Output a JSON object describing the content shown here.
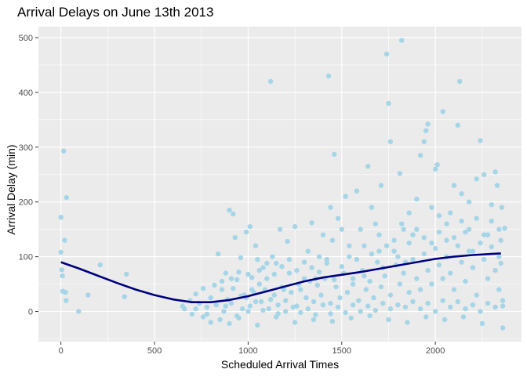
{
  "chart_data": {
    "type": "scatter",
    "title": "Arrival Delays on June 13th 2013",
    "xlabel": "Scheduled Arrival Times",
    "ylabel": "Arrival Delay (min)",
    "xlim": [
      -120,
      2460
    ],
    "ylim": [
      -55,
      520
    ],
    "xticks": [
      0,
      500,
      1000,
      1500,
      2000
    ],
    "yticks": [
      0,
      100,
      200,
      300,
      400,
      500
    ],
    "grid": true,
    "legend": "none",
    "colors": {
      "panel": "#ebebeb",
      "gridline": "#ffffff",
      "point": "#a6d5e8",
      "smooth": "#00007f",
      "text": "#000000",
      "tick_text": "#4d4d4d"
    },
    "series": [
      {
        "points": [
          [
            0,
            172
          ],
          [
            0,
            108
          ],
          [
            5,
            76
          ],
          [
            8,
            65
          ],
          [
            10,
            37
          ],
          [
            15,
            293
          ],
          [
            20,
            130
          ],
          [
            25,
            35
          ],
          [
            28,
            20
          ],
          [
            30,
            208
          ],
          [
            95,
            0
          ],
          [
            145,
            30
          ],
          [
            210,
            85
          ],
          [
            340,
            27
          ],
          [
            350,
            68
          ],
          [
            650,
            10
          ],
          [
            660,
            5
          ],
          [
            690,
            20
          ],
          [
            700,
            -5
          ],
          [
            720,
            32
          ],
          [
            740,
            15
          ],
          [
            760,
            42
          ],
          [
            780,
            8
          ],
          [
            800,
            25
          ],
          [
            820,
            48
          ],
          [
            840,
            105
          ],
          [
            860,
            40
          ],
          [
            880,
            10
          ],
          [
            900,
            185
          ],
          [
            910,
            60
          ],
          [
            920,
            178
          ],
          [
            930,
            135
          ],
          [
            950,
            72
          ],
          [
            960,
            98
          ],
          [
            980,
            30
          ],
          [
            990,
            145
          ],
          [
            1000,
            68
          ],
          [
            1010,
            155
          ],
          [
            1020,
            40
          ],
          [
            1040,
            120
          ],
          [
            1050,
            95
          ],
          [
            1060,
            50
          ],
          [
            1080,
            80
          ],
          [
            1100,
            60
          ],
          [
            1120,
            420
          ],
          [
            1130,
            100
          ],
          [
            1150,
            88
          ],
          [
            1170,
            150
          ],
          [
            1190,
            40
          ],
          [
            1210,
            128
          ],
          [
            1220,
            70
          ],
          [
            1250,
            155
          ],
          [
            1270,
            50
          ],
          [
            1300,
            90
          ],
          [
            1320,
            110
          ],
          [
            1340,
            162
          ],
          [
            1360,
            60
          ],
          [
            1380,
            100
          ],
          [
            1400,
            140
          ],
          [
            1420,
            88
          ],
          [
            1430,
            430
          ],
          [
            1440,
            190
          ],
          [
            1450,
            130
          ],
          [
            1460,
            287
          ],
          [
            1480,
            170
          ],
          [
            1500,
            150
          ],
          [
            1520,
            210
          ],
          [
            1540,
            100
          ],
          [
            1560,
            60
          ],
          [
            1580,
            220
          ],
          [
            1600,
            150
          ],
          [
            1620,
            120
          ],
          [
            1640,
            265
          ],
          [
            1660,
            190
          ],
          [
            1680,
            160
          ],
          [
            1700,
            110
          ],
          [
            1710,
            230
          ],
          [
            1720,
            80
          ],
          [
            1740,
            470
          ],
          [
            1750,
            380
          ],
          [
            1760,
            310
          ],
          [
            1780,
            130
          ],
          [
            1800,
            100
          ],
          [
            1810,
            252
          ],
          [
            1820,
            495
          ],
          [
            1830,
            150
          ],
          [
            1840,
            90
          ],
          [
            1860,
            180
          ],
          [
            1880,
            140
          ],
          [
            1900,
            205
          ],
          [
            1920,
            285
          ],
          [
            1940,
            310
          ],
          [
            1950,
            330
          ],
          [
            1960,
            342
          ],
          [
            1980,
            190
          ],
          [
            2000,
            260
          ],
          [
            2010,
            268
          ],
          [
            2020,
            175
          ],
          [
            2040,
            365
          ],
          [
            2060,
            130
          ],
          [
            2080,
            180
          ],
          [
            2100,
            230
          ],
          [
            2120,
            340
          ],
          [
            2130,
            420
          ],
          [
            2140,
            215
          ],
          [
            2160,
            145
          ],
          [
            2180,
            200
          ],
          [
            2200,
            110
          ],
          [
            2220,
            242
          ],
          [
            2240,
            312
          ],
          [
            2260,
            250
          ],
          [
            2280,
            140
          ],
          [
            2300,
            195
          ],
          [
            2320,
            255
          ],
          [
            2330,
            230
          ],
          [
            2340,
            100
          ],
          [
            2350,
            130
          ],
          [
            2355,
            190
          ],
          [
            2360,
            -30
          ],
          [
            2370,
            152
          ],
          [
            760,
            -10
          ],
          [
            800,
            -20
          ],
          [
            850,
            -15
          ],
          [
            900,
            -22
          ],
          [
            950,
            -12
          ],
          [
            1050,
            -25
          ],
          [
            1150,
            -10
          ],
          [
            1250,
            -20
          ],
          [
            1350,
            -15
          ],
          [
            1450,
            -18
          ],
          [
            1550,
            -12
          ],
          [
            1650,
            -8
          ],
          [
            1750,
            -15
          ],
          [
            1850,
            -20
          ],
          [
            1950,
            -10
          ],
          [
            2050,
            -15
          ],
          [
            2150,
            -10
          ],
          [
            2250,
            -22
          ],
          [
            720,
            5
          ],
          [
            780,
            -5
          ],
          [
            830,
            12
          ],
          [
            870,
            0
          ],
          [
            890,
            22
          ],
          [
            910,
            15
          ],
          [
            940,
            -8
          ],
          [
            970,
            5
          ],
          [
            990,
            25
          ],
          [
            1010,
            10
          ],
          [
            1030,
            35
          ],
          [
            1070,
            18
          ],
          [
            1090,
            40
          ],
          [
            1110,
            5
          ],
          [
            1140,
            30
          ],
          [
            1160,
            12
          ],
          [
            1180,
            45
          ],
          [
            1200,
            20
          ],
          [
            1230,
            35
          ],
          [
            1260,
            10
          ],
          [
            1280,
            40
          ],
          [
            1310,
            25
          ],
          [
            1330,
            55
          ],
          [
            1350,
            18
          ],
          [
            1370,
            48
          ],
          [
            1390,
            30
          ],
          [
            1410,
            60
          ],
          [
            1440,
            15
          ],
          [
            1470,
            45
          ],
          [
            1490,
            25
          ],
          [
            1510,
            70
          ],
          [
            1530,
            35
          ],
          [
            1560,
            50
          ],
          [
            1590,
            20
          ],
          [
            1610,
            75
          ],
          [
            1630,
            40
          ],
          [
            1650,
            55
          ],
          [
            1670,
            25
          ],
          [
            1690,
            90
          ],
          [
            1710,
            45
          ],
          [
            1730,
            65
          ],
          [
            1760,
            30
          ],
          [
            1790,
            85
          ],
          [
            1810,
            50
          ],
          [
            1830,
            70
          ],
          [
            1860,
            35
          ],
          [
            1880,
            95
          ],
          [
            1900,
            60
          ],
          [
            1920,
            40
          ],
          [
            1940,
            105
          ],
          [
            1960,
            75
          ],
          [
            1980,
            50
          ],
          [
            2000,
            115
          ],
          [
            2020,
            85
          ],
          [
            2040,
            60
          ],
          [
            2060,
            100
          ],
          [
            2080,
            70
          ],
          [
            2100,
            40
          ],
          [
            2120,
            120
          ],
          [
            2140,
            90
          ],
          [
            2160,
            55
          ],
          [
            2180,
            110
          ],
          [
            2200,
            80
          ],
          [
            2220,
            30
          ],
          [
            2240,
            125
          ],
          [
            2260,
            95
          ],
          [
            2280,
            60
          ],
          [
            2300,
            118
          ],
          [
            2320,
            75
          ],
          [
            2340,
            40
          ],
          [
            2350,
            88
          ],
          [
            2360,
            10
          ],
          [
            860,
            55
          ],
          [
            880,
            70
          ],
          [
            920,
            42
          ],
          [
            940,
            58
          ],
          [
            960,
            28
          ],
          [
            1000,
            0
          ],
          [
            1020,
            62
          ],
          [
            1040,
            18
          ],
          [
            1060,
            75
          ],
          [
            1080,
            2
          ],
          [
            1100,
            88
          ],
          [
            1120,
            22
          ],
          [
            1140,
            68
          ],
          [
            1160,
            -4
          ],
          [
            1180,
            82
          ],
          [
            1200,
            0
          ],
          [
            1220,
            95
          ],
          [
            1240,
            8
          ],
          [
            1260,
            75
          ],
          [
            1280,
            -2
          ],
          [
            1300,
            60
          ],
          [
            1320,
            5
          ],
          [
            1340,
            80
          ],
          [
            1360,
            -6
          ],
          [
            1380,
            72
          ],
          [
            1400,
            12
          ],
          [
            1420,
            95
          ],
          [
            1440,
            -4
          ],
          [
            1460,
            58
          ],
          [
            1480,
            8
          ],
          [
            1500,
            82
          ],
          [
            1520,
            -2
          ],
          [
            1540,
            120
          ],
          [
            1560,
            12
          ],
          [
            1580,
            95
          ],
          [
            1600,
            0
          ],
          [
            1620,
            65
          ],
          [
            1640,
            10
          ],
          [
            1660,
            105
          ],
          [
            1680,
            2
          ],
          [
            1700,
            140
          ],
          [
            1720,
            15
          ],
          [
            1740,
            120
          ],
          [
            1760,
            5
          ],
          [
            1780,
            110
          ],
          [
            1800,
            12
          ],
          [
            1820,
            160
          ],
          [
            1840,
            8
          ],
          [
            1860,
            125
          ],
          [
            1880,
            18
          ],
          [
            1900,
            150
          ],
          [
            1920,
            5
          ],
          [
            1940,
            135
          ],
          [
            1960,
            15
          ],
          [
            1980,
            125
          ],
          [
            2000,
            0
          ],
          [
            2020,
            145
          ],
          [
            2040,
            20
          ],
          [
            2060,
            160
          ],
          [
            2080,
            8
          ],
          [
            2100,
            135
          ],
          [
            2120,
            18
          ],
          [
            2140,
            165
          ],
          [
            2160,
            5
          ],
          [
            2180,
            150
          ],
          [
            2200,
            12
          ],
          [
            2220,
            170
          ],
          [
            2240,
            0
          ],
          [
            2260,
            140
          ],
          [
            2280,
            15
          ],
          [
            2300,
            165
          ],
          [
            2320,
            8
          ],
          [
            2340,
            150
          ],
          [
            2360,
            20
          ]
        ]
      }
    ],
    "smooth": {
      "x": [
        0,
        100,
        200,
        300,
        400,
        500,
        600,
        700,
        800,
        900,
        1000,
        1100,
        1200,
        1300,
        1400,
        1500,
        1600,
        1700,
        1800,
        1900,
        2000,
        2100,
        2200,
        2300,
        2350
      ],
      "y": [
        90,
        78,
        65,
        52,
        40,
        30,
        22,
        17,
        17,
        21,
        28,
        37,
        46,
        55,
        62,
        67,
        72,
        78,
        84,
        90,
        96,
        100,
        103,
        105,
        106
      ]
    }
  }
}
